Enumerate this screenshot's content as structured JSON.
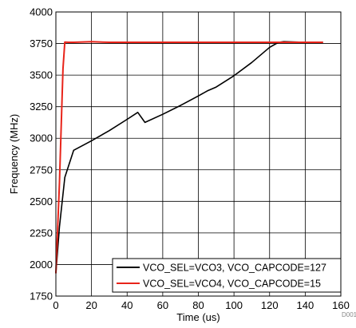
{
  "chart_data": {
    "type": "line",
    "xlabel": "Time (us)",
    "ylabel": "Frequency (MHz)",
    "xlim": [
      0,
      160
    ],
    "ylim": [
      1750,
      4000
    ],
    "x_ticks": [
      0,
      20,
      40,
      60,
      80,
      100,
      120,
      140,
      160
    ],
    "y_ticks": [
      1750,
      2000,
      2250,
      2500,
      2750,
      3000,
      3250,
      3500,
      3750,
      4000
    ],
    "grid": true,
    "legend_position": "bottom-right",
    "series": [
      {
        "name": "VCO_SEL=VCO3, VCO_CAPCODE=127",
        "color": "#000000",
        "x": [
          0,
          2,
          5,
          10,
          20,
          30,
          40,
          46,
          50,
          60,
          70,
          80,
          85,
          90,
          100,
          110,
          120,
          125,
          128,
          135,
          140,
          145,
          150
        ],
        "y": [
          1930,
          2300,
          2690,
          2905,
          2980,
          3060,
          3150,
          3205,
          3125,
          3190,
          3260,
          3335,
          3375,
          3405,
          3495,
          3600,
          3720,
          3760,
          3765,
          3762,
          3760,
          3760,
          3760
        ]
      },
      {
        "name": "VCO_SEL=VCO4, VCO_CAPCODE=15",
        "color": "#e8241a",
        "x": [
          0,
          2,
          4,
          5,
          7,
          10,
          20,
          30,
          50,
          80,
          100,
          120,
          150
        ],
        "y": [
          1930,
          2650,
          3550,
          3762,
          3760,
          3760,
          3764,
          3760,
          3760,
          3760,
          3760,
          3760,
          3760
        ]
      }
    ]
  },
  "figure_code": "D001"
}
